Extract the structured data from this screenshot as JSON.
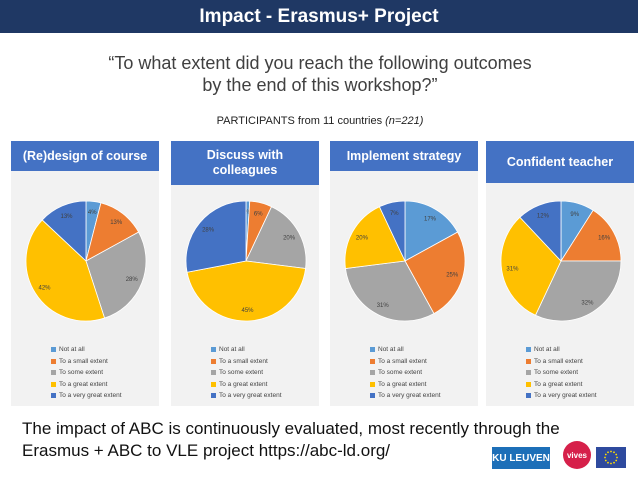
{
  "header": {
    "title": "Impact - Erasmus+ Project"
  },
  "question": {
    "line1": "“To what extent did you reach the following outcomes",
    "line2": "by the end of this workshop?”"
  },
  "participants": {
    "text": "PARTICIPANTS from 11 countries ",
    "n": "(n=221)"
  },
  "footer": {
    "line1": "The impact of ABC is continuously evaluated, most recently through the",
    "line2": "Erasmus + ABC to VLE project https://abc-ld.org/"
  },
  "logos": {
    "ku_leuven": "KU LEUVEN",
    "vives": "vives"
  },
  "colors": {
    "header_bar": "#1f3864",
    "card_header": "#4472c4",
    "slices": [
      "#5b9bd5",
      "#ed7d31",
      "#a5a5a5",
      "#ffc000",
      "#4472c4"
    ]
  },
  "chart_data": [
    {
      "type": "pie",
      "title": "(Re)design of course",
      "categories": [
        "Not at all",
        "To a small extent",
        "To some extent",
        "To a great extent",
        "To a very great extent"
      ],
      "values": [
        4,
        13,
        28,
        42,
        13
      ],
      "labels": [
        "4%",
        "13%",
        "28%",
        "42%",
        "13%"
      ],
      "legend": "bottom"
    },
    {
      "type": "pie",
      "title": "Discuss with colleagues",
      "categories": [
        "Not at all",
        "To a small extent",
        "To some extent",
        "To a great extent",
        "To a very great extent"
      ],
      "values": [
        1,
        6,
        20,
        45,
        28
      ],
      "labels": [
        "1%",
        "6%",
        "20%",
        "45%",
        "28%"
      ],
      "legend": "bottom"
    },
    {
      "type": "pie",
      "title": "Implement strategy",
      "categories": [
        "Not at all",
        "To a small extent",
        "To some extent",
        "To a great extent",
        "To a very great extent"
      ],
      "values": [
        17,
        25,
        31,
        20,
        7
      ],
      "labels": [
        "17%",
        "25%",
        "31%",
        "20%",
        "7%"
      ],
      "legend": "bottom"
    },
    {
      "type": "pie",
      "title": "Confident teacher",
      "categories": [
        "Not at all",
        "To a small extent",
        "To some extent",
        "To a great extent",
        "To a very great extent"
      ],
      "values": [
        9,
        16,
        32,
        31,
        12
      ],
      "labels": [
        "9%",
        "16%",
        "32%",
        "31%",
        "12%"
      ],
      "legend": "bottom"
    }
  ]
}
